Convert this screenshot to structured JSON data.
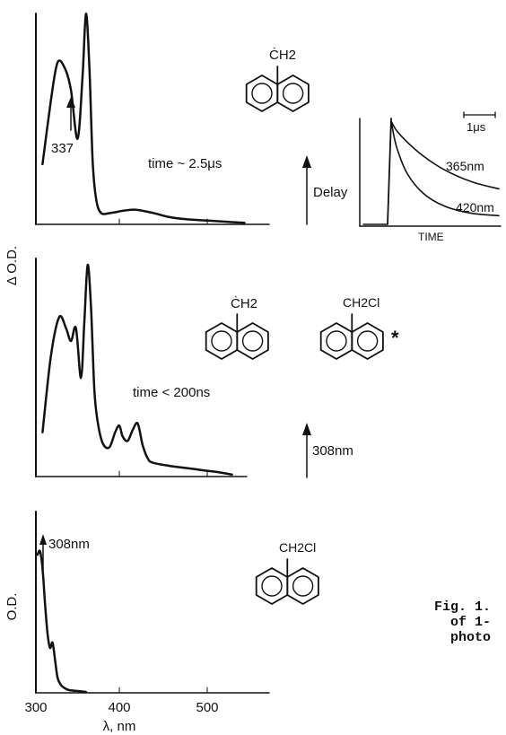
{
  "figure_caption_fragment": [
    "Fig. 1.",
    "of 1-",
    "photo"
  ],
  "chart_data": [
    {
      "type": "line",
      "panel": "top",
      "ylabel": "Δ O.D.",
      "annotations": [
        "337",
        "time ~ 2.5μs",
        "Delay"
      ],
      "molecule_label": "ĊH2",
      "x_range": [
        300,
        570
      ],
      "y_range": [
        0,
        1
      ],
      "series": [
        {
          "x": [
            308,
            318,
            326,
            335,
            342,
            350,
            356,
            360,
            364,
            368,
            372,
            378,
            390,
            405,
            420,
            440,
            460,
            480,
            500,
            520,
            540,
            550
          ],
          "y": [
            0.28,
            0.58,
            0.76,
            0.73,
            0.63,
            0.4,
            0.7,
            0.99,
            0.75,
            0.3,
            0.12,
            0.05,
            0.05,
            0.06,
            0.065,
            0.05,
            0.03,
            0.02,
            0.015,
            0.01,
            0.005,
            0.003
          ]
        }
      ]
    },
    {
      "type": "line",
      "panel": "inset",
      "xlabel": "TIME",
      "scale_label": "1μs",
      "series": [
        {
          "name": "365nm",
          "t": [
            0,
            0.2,
            0.6,
            1.2,
            2.0,
            3.0,
            4.0
          ],
          "y": [
            0.9,
            0.82,
            0.72,
            0.6,
            0.48,
            0.38,
            0.32
          ]
        },
        {
          "name": "420nm",
          "t": [
            0,
            0.2,
            0.6,
            1.2,
            2.0,
            3.0,
            4.0
          ],
          "y": [
            0.9,
            0.68,
            0.45,
            0.28,
            0.17,
            0.11,
            0.09
          ]
        }
      ]
    },
    {
      "type": "line",
      "panel": "middle",
      "annotations": [
        "time < 200ns",
        "308nm"
      ],
      "molecule_labels": [
        "ĊH2",
        "CH2Cl",
        "*"
      ],
      "x_range": [
        300,
        570
      ],
      "y_range": [
        0,
        1
      ],
      "series": [
        {
          "x": [
            308,
            318,
            328,
            336,
            342,
            348,
            354,
            358,
            362,
            366,
            370,
            374,
            380,
            388,
            395,
            400,
            404,
            410,
            416,
            422,
            428,
            434,
            440,
            460,
            480,
            500,
            520,
            535
          ],
          "y": [
            0.2,
            0.55,
            0.73,
            0.68,
            0.62,
            0.68,
            0.45,
            0.7,
            0.97,
            0.78,
            0.4,
            0.25,
            0.15,
            0.13,
            0.2,
            0.23,
            0.18,
            0.16,
            0.21,
            0.24,
            0.14,
            0.08,
            0.06,
            0.045,
            0.035,
            0.025,
            0.015,
            0.005
          ]
        }
      ]
    },
    {
      "type": "line",
      "panel": "bottom",
      "ylabel": "O.D.",
      "xlabel": "λ, nm",
      "annotations": [
        "308nm"
      ],
      "molecule_label": "CH2Cl",
      "x_range": [
        295,
        570
      ],
      "xticks": [
        300,
        400,
        500
      ],
      "y_range": [
        0,
        1
      ],
      "series": [
        {
          "x": [
            302,
            305,
            308,
            311,
            314,
            317,
            320,
            323,
            326,
            330,
            335,
            340,
            350,
            360
          ],
          "y": [
            0.78,
            0.8,
            0.7,
            0.5,
            0.33,
            0.25,
            0.28,
            0.18,
            0.08,
            0.04,
            0.02,
            0.01,
            0.005,
            0.0
          ]
        }
      ]
    }
  ]
}
